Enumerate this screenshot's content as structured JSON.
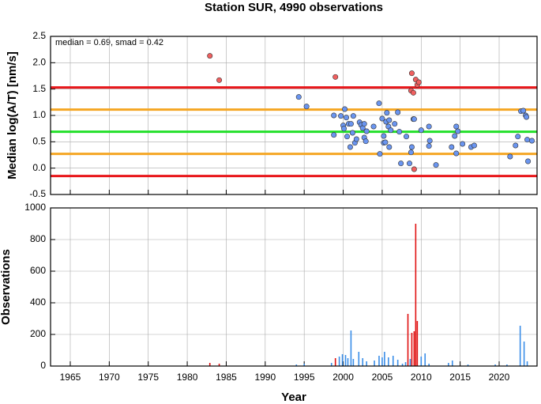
{
  "chart_data": [
    {
      "type": "scatter",
      "title": "Station SUR, 4990 observations",
      "ylabel": "Median log(A/T) [nm/s]",
      "annotation": "median = 0.69, smad = 0.42",
      "xlim": [
        1962.47,
        2024.86
      ],
      "xticks": [
        1965,
        1970,
        1975,
        1980,
        1985,
        1990,
        1995,
        2000,
        2005,
        2010,
        2015,
        2020
      ],
      "ylim": [
        -0.5,
        2.5
      ],
      "yticks": [
        -0.5,
        {
          "value": 0,
          "label": "0.0"
        },
        0.5,
        {
          "value": 1,
          "label": "1.0"
        },
        1.5,
        {
          "value": 2,
          "label": "2.0"
        },
        2.5
      ],
      "grid": true,
      "hlines": [
        {
          "value": 1.53,
          "color": "#e8161a"
        },
        {
          "value": 1.11,
          "color": "#f5a623"
        },
        {
          "value": 0.69,
          "color": "#22e02a"
        },
        {
          "value": 0.27,
          "color": "#f5a623"
        },
        {
          "value": -0.15,
          "color": "#e8161a"
        }
      ],
      "series": [
        {
          "color": "#6a95f0",
          "x": [
            1994.3,
            1995.3,
            1998.8,
            1998.8,
            1999.7,
            2000.0,
            2000.2,
            2000.4,
            2000.1,
            2000.5,
            2000.7,
            2000.9,
            2001.0,
            2001.2,
            2001.3,
            2001.5,
            2001.7,
            2002.1,
            2002.3,
            2002.5,
            2002.7,
            2002.7,
            2002.9,
            2003.0,
            2003.9,
            2004.6,
            2004.7,
            2005.0,
            2005.2,
            2005.2,
            2005.4,
            2005.5,
            2005.6,
            2005.8,
            2005.9,
            2005.9,
            2006.1,
            2006.6,
            2007.0,
            2007.2,
            2007.4,
            2008.1,
            2008.5,
            2008.7,
            2008.8,
            2009.0,
            2009.1,
            2010.0,
            2011.0,
            2011.0,
            2011.1,
            2011.9,
            2013.9,
            2014.3,
            2014.5,
            2014.5,
            2014.7,
            2015.3,
            2016.4,
            2016.8,
            2021.4,
            2022.1,
            2022.4,
            2022.8,
            2023.1,
            2023.4,
            2023.5,
            2023.6,
            2023.7,
            2024.2
          ],
          "values": [
            1.35,
            1.17,
            1.0,
            0.63,
            0.99,
            0.81,
            1.12,
            0.96,
            0.75,
            0.6,
            0.84,
            0.4,
            0.84,
            0.67,
            0.99,
            0.48,
            0.55,
            0.87,
            0.82,
            0.76,
            0.58,
            0.84,
            0.51,
            0.7,
            0.79,
            1.23,
            0.27,
            0.94,
            0.61,
            0.48,
            0.49,
            0.88,
            1.05,
            0.79,
            0.91,
            0.4,
            0.72,
            0.84,
            1.06,
            0.69,
            0.09,
            0.6,
            0.09,
            0.3,
            0.4,
            0.93,
            0.93,
            0.72,
            0.79,
            0.42,
            0.52,
            0.06,
            0.4,
            0.61,
            0.79,
            0.28,
            0.7,
            0.46,
            0.4,
            0.43,
            0.22,
            0.43,
            0.6,
            1.08,
            1.09,
            1.0,
            0.97,
            0.54,
            0.13,
            0.52
          ]
        },
        {
          "color": "#f06060",
          "x": [
            1982.9,
            1984.1,
            1999.0,
            2008.8,
            2008.7,
            2009.0,
            2009.3,
            2009.5,
            2009.7,
            2009.1
          ],
          "values": [
            2.13,
            1.67,
            1.73,
            1.8,
            1.47,
            1.43,
            1.68,
            1.58,
            1.63,
            -0.02
          ]
        }
      ]
    },
    {
      "type": "bar",
      "xlabel": "Year",
      "ylabel": "Observations",
      "xlim": [
        1962.47,
        2024.86
      ],
      "xticks": [
        1965,
        1970,
        1975,
        1980,
        1985,
        1990,
        1995,
        2000,
        2005,
        2010,
        2015,
        2020
      ],
      "ylim": [
        0,
        1000
      ],
      "yticks": [
        0,
        200,
        400,
        600,
        800,
        1000
      ],
      "grid": true,
      "series": [
        {
          "color": "#3a8ee8",
          "x": [
            1994,
            1995,
            1998.5,
            1999.5,
            1999.9,
            2000.3,
            2000.6,
            2001,
            2001.3,
            2002,
            2002.5,
            2003,
            2004,
            2004.6,
            2005,
            2005.3,
            2005.8,
            2006.4,
            2007,
            2007.6,
            2008,
            2008.6,
            2010,
            2010.5,
            2011,
            2013.5,
            2014,
            2016,
            2019.5,
            2021,
            2022.7,
            2023.2,
            2023.6
          ],
          "values": [
            10,
            15,
            20,
            60,
            75,
            70,
            50,
            225,
            45,
            90,
            50,
            30,
            35,
            65,
            55,
            90,
            55,
            65,
            40,
            15,
            25,
            45,
            60,
            80,
            15,
            20,
            35,
            10,
            10,
            10,
            255,
            155,
            30
          ]
        },
        {
          "color": "#e01010",
          "x": [
            1982.9,
            1984.1,
            1999.0,
            2008.3,
            2008.8,
            2009.1,
            2009.3,
            2009.5
          ],
          "values": [
            20,
            15,
            50,
            330,
            210,
            220,
            900,
            285
          ]
        }
      ]
    }
  ]
}
